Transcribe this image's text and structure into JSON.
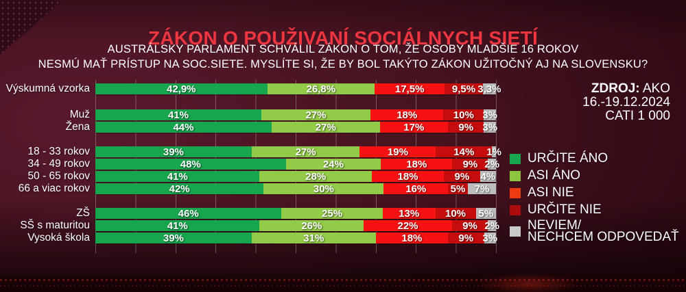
{
  "title": "ZÁKON O POUŽIVANÍ SOCIÁLNYCH SIETÍ",
  "subtitle_line1": "AUSTRÁLSKY PARLAMENT SCHVÁLIL ZÁKON O TOM, ŽE OSOBY MLADŠIE 16 ROKOV",
  "subtitle_line2": "NESMÚ MAŤ PRÍSTUP NA SOC.SIETE. MYSLÍTE SI, ŽE BY BOL TAKÝTO ZÁKON UŽITOČNÝ AJ NA SLOVENSKU?",
  "source": {
    "label_bold": "ZDROJ:",
    "label_value": "AKO",
    "date_range": "16.-19.12.2024",
    "method": "CATI 1 000"
  },
  "colors": {
    "title": "#ee3641",
    "background_main": "#47131f",
    "background_dark": "#1d0407",
    "gridline": "rgba(255,255,255,0.28)",
    "text": "#ffffff"
  },
  "chart_data": {
    "type": "bar",
    "subtype": "horizontal-stacked-percent",
    "x_max": 100,
    "gridline_step": 10,
    "grid": true,
    "legend_position": "right",
    "series": [
      {
        "key": "urcite-ano",
        "name": "URČITE ÁNO",
        "color": "#17a64e",
        "legend_color": "#17a64e",
        "label_lines": [
          "URČITE ÁNO"
        ]
      },
      {
        "key": "asi-ano",
        "name": "ASI ÁNO",
        "color": "#92cb47",
        "legend_color": "#8cc63f",
        "label_lines": [
          "ASI ÁNO"
        ]
      },
      {
        "key": "asi-nie",
        "name": "ASI NIE",
        "color": "#f61212",
        "legend_color": "#ee3c12",
        "label_lines": [
          "ASI NIE"
        ]
      },
      {
        "key": "urcite-nie",
        "name": "URČITE NIE",
        "color": "#c50d0d",
        "legend_color": "#ad0c0c",
        "label_lines": [
          "URČITE NIE"
        ]
      },
      {
        "key": "neviem",
        "name": "NEVIEM/NECHCEM ODPOVEDAŤ",
        "color": "#bdbdbd",
        "legend_color": "#c9c9c9",
        "label_lines": [
          "NEVIEM/",
          "NECHCEM ODPOVEDAŤ"
        ]
      }
    ],
    "groups": [
      {
        "rows": [
          {
            "label": "Výskumná vzorka",
            "values": [
              42.9,
              26.8,
              17.5,
              9.5,
              3.3
            ],
            "display": [
              "42,9%",
              "26,8%",
              "17,5%",
              "9,5%",
              "3,3%"
            ]
          }
        ]
      },
      {
        "rows": [
          {
            "label": "Muž",
            "values": [
              41,
              27,
              18,
              10,
              3
            ],
            "display": [
              "41%",
              "27%",
              "18%",
              "10%",
              "3%"
            ]
          },
          {
            "label": "Žena",
            "values": [
              44,
              27,
              17,
              9,
              3
            ],
            "display": [
              "44%",
              "27%",
              "17%",
              "9%",
              "3%"
            ]
          }
        ]
      },
      {
        "rows": [
          {
            "label": "18 - 33 rokov",
            "values": [
              39,
              27,
              19,
              14,
              1
            ],
            "display": [
              "39%",
              "27%",
              "19%",
              "14%",
              "1%"
            ]
          },
          {
            "label": "34 - 49 rokov",
            "values": [
              48,
              24,
              18,
              9,
              2
            ],
            "display": [
              "48%",
              "24%",
              "18%",
              "9%",
              "2%"
            ]
          },
          {
            "label": "50 - 65 rokov",
            "values": [
              41,
              28,
              18,
              9,
              4
            ],
            "display": [
              "41%",
              "28%",
              "18%",
              "9%",
              "4%"
            ]
          },
          {
            "label": "66 a viac rokov",
            "values": [
              42,
              30,
              16,
              5,
              7
            ],
            "display": [
              "42%",
              "30%",
              "16%",
              "5%",
              "7%"
            ]
          }
        ]
      },
      {
        "rows": [
          {
            "label": "ZŠ",
            "values": [
              46,
              25,
              13,
              10,
              5
            ],
            "display": [
              "46%",
              "25%",
              "13%",
              "10%",
              "5%"
            ]
          },
          {
            "label": "SŠ s maturitou",
            "values": [
              41,
              26,
              22,
              9,
              2
            ],
            "display": [
              "41%",
              "26%",
              "22%",
              "9%",
              "2%"
            ]
          },
          {
            "label": "Vysoká škola",
            "values": [
              39,
              31,
              18,
              9,
              3
            ],
            "display": [
              "39%",
              "31%",
              "18%",
              "9%",
              "3%"
            ]
          }
        ]
      }
    ]
  }
}
